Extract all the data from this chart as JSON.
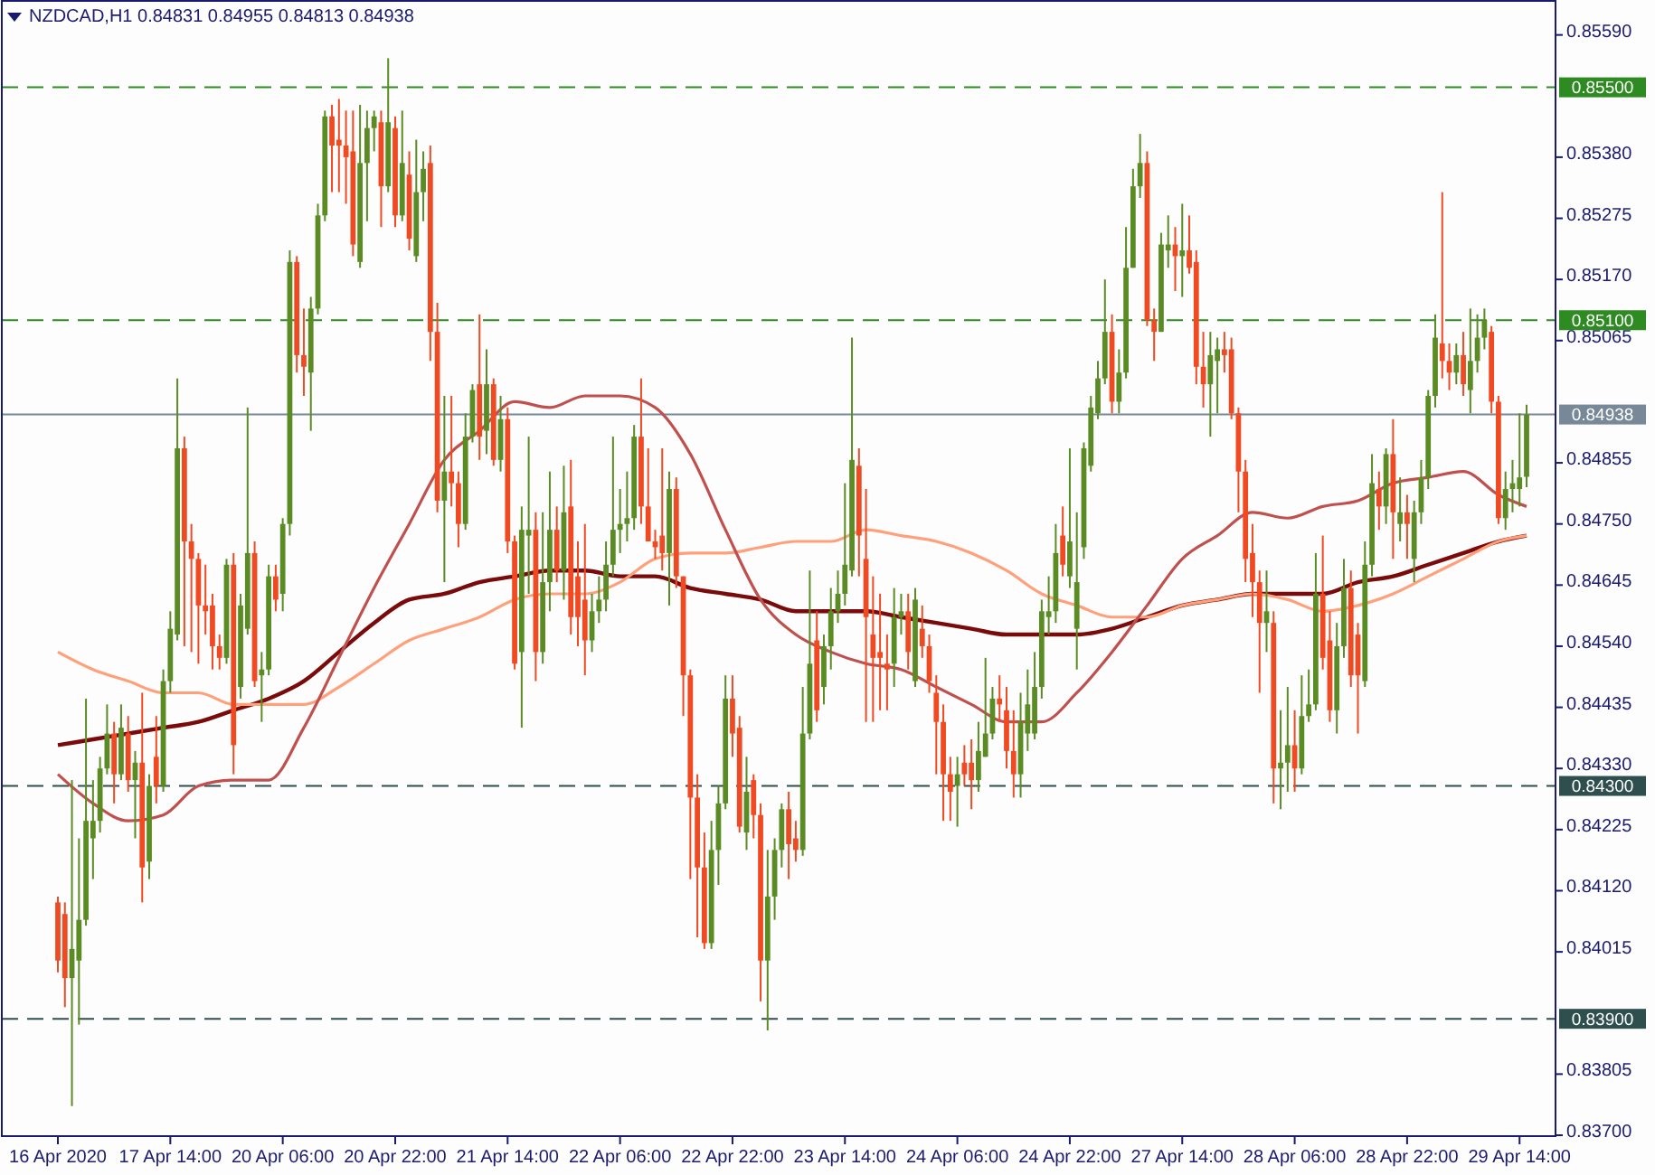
{
  "chart_data": {
    "type": "candlestick",
    "title": "NZDCAD,H1 0.84831 0.84955 0.84813 0.84938",
    "categories": [
      "16 Apr 2020",
      null,
      null,
      null,
      null,
      null,
      null,
      null,
      null,
      null,
      null,
      null,
      null,
      null,
      null,
      null,
      "17 Apr 14:00",
      null,
      null,
      null,
      null,
      null,
      null,
      null,
      null,
      null,
      null,
      null,
      null,
      null,
      null,
      null,
      "20 Apr 06:00",
      null,
      null,
      null,
      null,
      null,
      null,
      null,
      null,
      null,
      null,
      null,
      null,
      null,
      null,
      null,
      "20 Apr 22:00",
      null,
      null,
      null,
      null,
      null,
      null,
      null,
      null,
      null,
      null,
      null,
      null,
      null,
      null,
      null,
      "21 Apr 14:00",
      null,
      null,
      null,
      null,
      null,
      null,
      null,
      null,
      null,
      null,
      null,
      null,
      null,
      null,
      null,
      "22 Apr 06:00",
      null,
      null,
      null,
      null,
      null,
      null,
      null,
      null,
      null,
      null,
      null,
      null,
      null,
      null,
      null,
      "22 Apr 22:00",
      null,
      null,
      null,
      null,
      null,
      null,
      null,
      null,
      null,
      null,
      null,
      null,
      null,
      null,
      null,
      "23 Apr 14:00",
      null,
      null,
      null,
      null,
      null,
      null,
      null,
      null,
      null,
      null,
      null,
      null,
      null,
      null,
      null,
      "24 Apr 06:00",
      null,
      null,
      null,
      null,
      null,
      null,
      null,
      null,
      null,
      null,
      null,
      null,
      null,
      null,
      null,
      "24 Apr 22:00",
      null,
      null,
      null,
      null,
      null,
      null,
      null,
      null,
      null,
      null,
      null,
      null,
      null,
      null,
      null,
      "27 Apr 14:00",
      null,
      null,
      null,
      null,
      null,
      null,
      null,
      null,
      null,
      null,
      null,
      null,
      null,
      null,
      null,
      "28 Apr 06:00",
      null,
      null,
      null,
      null,
      null,
      null,
      null,
      null,
      null,
      null,
      null,
      null,
      null,
      null,
      null,
      "28 Apr 22:00",
      null,
      null,
      null,
      null,
      null,
      null,
      null,
      null,
      null,
      null,
      null,
      null,
      null,
      null,
      null,
      "29 Apr 14:00",
      null
    ],
    "ohlc": [
      [
        0.841,
        0.8411,
        0.8398,
        0.84
      ],
      [
        0.8408,
        0.841,
        0.8392,
        0.8397
      ],
      [
        0.8397,
        0.8431,
        0.8375,
        0.8402
      ],
      [
        0.84,
        0.8421,
        0.8389,
        0.8407
      ],
      [
        0.8407,
        0.8445,
        0.8406,
        0.8424
      ],
      [
        0.8421,
        0.8431,
        0.8414,
        0.8424
      ],
      [
        0.8424,
        0.8435,
        0.8422,
        0.8433
      ],
      [
        0.8433,
        0.8444,
        0.8432,
        0.8439
      ],
      [
        0.8439,
        0.8441,
        0.8427,
        0.8432
      ],
      [
        0.8432,
        0.8444,
        0.8431,
        0.844
      ],
      [
        0.8439,
        0.8442,
        0.8429,
        0.8431
      ],
      [
        0.8431,
        0.8436,
        0.8421,
        0.8434
      ],
      [
        0.8434,
        0.8446,
        0.841,
        0.8416
      ],
      [
        0.8417,
        0.8432,
        0.8414,
        0.843
      ],
      [
        0.8435,
        0.8442,
        0.8427,
        0.843
      ],
      [
        0.843,
        0.845,
        0.8429,
        0.8448
      ],
      [
        0.8448,
        0.846,
        0.8446,
        0.8457
      ],
      [
        0.8456,
        0.85,
        0.8455,
        0.8488
      ],
      [
        0.8488,
        0.849,
        0.8454,
        0.8472
      ],
      [
        0.8472,
        0.8475,
        0.8453,
        0.8469
      ],
      [
        0.8469,
        0.847,
        0.8451,
        0.8461
      ],
      [
        0.8461,
        0.8468,
        0.8456,
        0.846
      ],
      [
        0.8461,
        0.8463,
        0.845,
        0.8454
      ],
      [
        0.8454,
        0.8456,
        0.845,
        0.8452
      ],
      [
        0.8452,
        0.8469,
        0.8451,
        0.8468
      ],
      [
        0.8468,
        0.847,
        0.8432,
        0.8437
      ],
      [
        0.8447,
        0.8463,
        0.8445,
        0.8461
      ],
      [
        0.8457,
        0.8495,
        0.8456,
        0.847
      ],
      [
        0.847,
        0.8472,
        0.8447,
        0.8448
      ],
      [
        0.8449,
        0.8453,
        0.8441,
        0.845
      ],
      [
        0.845,
        0.8468,
        0.8449,
        0.8466
      ],
      [
        0.8466,
        0.8468,
        0.846,
        0.8462
      ],
      [
        0.8463,
        0.8476,
        0.846,
        0.8475
      ],
      [
        0.8475,
        0.8522,
        0.8473,
        0.852
      ],
      [
        0.852,
        0.8521,
        0.8501,
        0.8504
      ],
      [
        0.8504,
        0.8512,
        0.8497,
        0.8502
      ],
      [
        0.8501,
        0.8514,
        0.8491,
        0.8512
      ],
      [
        0.8512,
        0.853,
        0.8511,
        0.8528
      ],
      [
        0.8528,
        0.8546,
        0.8527,
        0.8545
      ],
      [
        0.8545,
        0.8547,
        0.8532,
        0.854
      ],
      [
        0.8541,
        0.8548,
        0.8532,
        0.854
      ],
      [
        0.854,
        0.8546,
        0.853,
        0.8538
      ],
      [
        0.8539,
        0.8546,
        0.8521,
        0.8523
      ],
      [
        0.852,
        0.8547,
        0.8519,
        0.8537
      ],
      [
        0.8537,
        0.8546,
        0.8527,
        0.8543
      ],
      [
        0.8543,
        0.8546,
        0.8539,
        0.8545
      ],
      [
        0.8544,
        0.8546,
        0.8526,
        0.8533
      ],
      [
        0.8533,
        0.8555,
        0.8532,
        0.8544
      ],
      [
        0.8543,
        0.8545,
        0.8526,
        0.8528
      ],
      [
        0.8528,
        0.8546,
        0.8527,
        0.8537
      ],
      [
        0.8535,
        0.8539,
        0.8522,
        0.8524
      ],
      [
        0.8521,
        0.8541,
        0.852,
        0.8532
      ],
      [
        0.8532,
        0.8539,
        0.8527,
        0.8536
      ],
      [
        0.8537,
        0.854,
        0.8503,
        0.8508
      ],
      [
        0.8508,
        0.8513,
        0.8477,
        0.8479
      ],
      [
        0.8479,
        0.8497,
        0.8465,
        0.8484
      ],
      [
        0.8484,
        0.8497,
        0.8478,
        0.8482
      ],
      [
        0.8482,
        0.8484,
        0.8471,
        0.8475
      ],
      [
        0.8475,
        0.8494,
        0.8474,
        0.849
      ],
      [
        0.849,
        0.8499,
        0.8489,
        0.8498
      ],
      [
        0.8499,
        0.8511,
        0.8486,
        0.849
      ],
      [
        0.8491,
        0.8505,
        0.8487,
        0.8499
      ],
      [
        0.8499,
        0.85,
        0.8485,
        0.8486
      ],
      [
        0.8486,
        0.8497,
        0.8484,
        0.8493
      ],
      [
        0.8493,
        0.8495,
        0.847,
        0.8472
      ],
      [
        0.8472,
        0.8473,
        0.845,
        0.8451
      ],
      [
        0.8453,
        0.8478,
        0.844,
        0.8474
      ],
      [
        0.8473,
        0.849,
        0.8463,
        0.8474
      ],
      [
        0.8474,
        0.8477,
        0.8448,
        0.8453
      ],
      [
        0.8453,
        0.8477,
        0.8451,
        0.8465
      ],
      [
        0.8465,
        0.8484,
        0.846,
        0.8474
      ],
      [
        0.8474,
        0.8478,
        0.8465,
        0.8467
      ],
      [
        0.8467,
        0.8485,
        0.8462,
        0.8477
      ],
      [
        0.8478,
        0.8486,
        0.8456,
        0.8459
      ],
      [
        0.8466,
        0.8472,
        0.8454,
        0.8459
      ],
      [
        0.8462,
        0.8475,
        0.8449,
        0.8455
      ],
      [
        0.8455,
        0.8463,
        0.8453,
        0.846
      ],
      [
        0.846,
        0.8466,
        0.8458,
        0.8462
      ],
      [
        0.8462,
        0.8472,
        0.846,
        0.8468
      ],
      [
        0.8468,
        0.849,
        0.8466,
        0.8474
      ],
      [
        0.8474,
        0.8481,
        0.847,
        0.8475
      ],
      [
        0.8475,
        0.8484,
        0.8472,
        0.8476
      ],
      [
        0.8476,
        0.8492,
        0.8474,
        0.849
      ],
      [
        0.849,
        0.85,
        0.8475,
        0.8478
      ],
      [
        0.8478,
        0.8488,
        0.8472,
        0.8472
      ],
      [
        0.8472,
        0.8474,
        0.8469,
        0.8471
      ],
      [
        0.8473,
        0.8488,
        0.8467,
        0.847
      ],
      [
        0.847,
        0.8484,
        0.8461,
        0.8481
      ],
      [
        0.8481,
        0.8483,
        0.8464,
        0.8466
      ],
      [
        0.8466,
        0.8466,
        0.8442,
        0.8449
      ],
      [
        0.8449,
        0.845,
        0.8414,
        0.8428
      ],
      [
        0.8428,
        0.8432,
        0.8404,
        0.8416
      ],
      [
        0.8416,
        0.8422,
        0.8402,
        0.8403
      ],
      [
        0.8403,
        0.8424,
        0.8402,
        0.8419
      ],
      [
        0.8419,
        0.843,
        0.8413,
        0.8427
      ],
      [
        0.8427,
        0.8449,
        0.8426,
        0.8445
      ],
      [
        0.8445,
        0.8449,
        0.8435,
        0.8439
      ],
      [
        0.844,
        0.8442,
        0.8422,
        0.8423
      ],
      [
        0.8422,
        0.8435,
        0.8419,
        0.8429
      ],
      [
        0.8431,
        0.8432,
        0.8421,
        0.8425
      ],
      [
        0.8425,
        0.8427,
        0.8393,
        0.84
      ],
      [
        0.84,
        0.8419,
        0.8388,
        0.8411
      ],
      [
        0.8411,
        0.8421,
        0.8407,
        0.8419
      ],
      [
        0.8419,
        0.8427,
        0.8416,
        0.8426
      ],
      [
        0.8426,
        0.8429,
        0.8414,
        0.842
      ],
      [
        0.8421,
        0.8424,
        0.8417,
        0.8419
      ],
      [
        0.8419,
        0.8447,
        0.8418,
        0.8439
      ],
      [
        0.8439,
        0.8467,
        0.8438,
        0.8451
      ],
      [
        0.8455,
        0.846,
        0.8441,
        0.8443
      ],
      [
        0.8447,
        0.8456,
        0.8444,
        0.8454
      ],
      [
        0.8454,
        0.8464,
        0.845,
        0.846
      ],
      [
        0.846,
        0.8467,
        0.8458,
        0.8463
      ],
      [
        0.8463,
        0.8482,
        0.8461,
        0.8468
      ],
      [
        0.8467,
        0.8507,
        0.8466,
        0.8486
      ],
      [
        0.8485,
        0.8488,
        0.8466,
        0.8473
      ],
      [
        0.8469,
        0.8481,
        0.8441,
        0.8459
      ],
      [
        0.8456,
        0.8466,
        0.8441,
        0.8452
      ],
      [
        0.8453,
        0.8463,
        0.8443,
        0.8452
      ],
      [
        0.8451,
        0.8456,
        0.8443,
        0.845
      ],
      [
        0.8451,
        0.8464,
        0.8447,
        0.8459
      ],
      [
        0.8459,
        0.8463,
        0.8456,
        0.846
      ],
      [
        0.846,
        0.8463,
        0.845,
        0.8453
      ],
      [
        0.8448,
        0.8464,
        0.8447,
        0.8462
      ],
      [
        0.8457,
        0.8461,
        0.8452,
        0.8454
      ],
      [
        0.8454,
        0.8456,
        0.8446,
        0.8448
      ],
      [
        0.8446,
        0.8449,
        0.8432,
        0.8441
      ],
      [
        0.8441,
        0.8444,
        0.8424,
        0.8432
      ],
      [
        0.8432,
        0.8435,
        0.8424,
        0.8429
      ],
      [
        0.843,
        0.8435,
        0.8423,
        0.8432
      ],
      [
        0.8434,
        0.8437,
        0.843,
        0.8432
      ],
      [
        0.8434,
        0.8438,
        0.8426,
        0.8431
      ],
      [
        0.8431,
        0.8441,
        0.8429,
        0.8436
      ],
      [
        0.8435,
        0.8452,
        0.8435,
        0.8439
      ],
      [
        0.8439,
        0.8447,
        0.8438,
        0.8445
      ],
      [
        0.8445,
        0.8449,
        0.8441,
        0.8444
      ],
      [
        0.8443,
        0.8447,
        0.8433,
        0.8436
      ],
      [
        0.8436,
        0.8443,
        0.8428,
        0.8432
      ],
      [
        0.8432,
        0.8446,
        0.8428,
        0.8441
      ],
      [
        0.8439,
        0.845,
        0.8436,
        0.8444
      ],
      [
        0.8439,
        0.8453,
        0.8438,
        0.8447
      ],
      [
        0.8447,
        0.8462,
        0.8445,
        0.846
      ],
      [
        0.8459,
        0.8466,
        0.8456,
        0.846
      ],
      [
        0.846,
        0.8475,
        0.8458,
        0.847
      ],
      [
        0.8473,
        0.8478,
        0.8466,
        0.8468
      ],
      [
        0.8466,
        0.8488,
        0.8464,
        0.8472
      ],
      [
        0.8457,
        0.8477,
        0.845,
        0.8465
      ],
      [
        0.8471,
        0.8489,
        0.8469,
        0.8488
      ],
      [
        0.8485,
        0.8497,
        0.8484,
        0.8495
      ],
      [
        0.8494,
        0.8503,
        0.8493,
        0.85
      ],
      [
        0.85,
        0.8517,
        0.8499,
        0.8508
      ],
      [
        0.8508,
        0.8511,
        0.8494,
        0.8496
      ],
      [
        0.8496,
        0.8505,
        0.8494,
        0.8501
      ],
      [
        0.8501,
        0.8526,
        0.85,
        0.8519
      ],
      [
        0.8519,
        0.8536,
        0.8519,
        0.8533
      ],
      [
        0.8533,
        0.8542,
        0.8531,
        0.8537
      ],
      [
        0.8537,
        0.8539,
        0.8509,
        0.851
      ],
      [
        0.851,
        0.8512,
        0.8503,
        0.8508
      ],
      [
        0.8508,
        0.8525,
        0.8508,
        0.8523
      ],
      [
        0.8522,
        0.8528,
        0.8519,
        0.8523
      ],
      [
        0.8523,
        0.8526,
        0.8515,
        0.8521
      ],
      [
        0.8521,
        0.853,
        0.8514,
        0.8522
      ],
      [
        0.8522,
        0.8528,
        0.8518,
        0.8519
      ],
      [
        0.852,
        0.8522,
        0.8499,
        0.8502
      ],
      [
        0.8502,
        0.8508,
        0.8495,
        0.8499
      ],
      [
        0.8499,
        0.8508,
        0.849,
        0.8504
      ],
      [
        0.8503,
        0.8507,
        0.8494,
        0.8505
      ],
      [
        0.8505,
        0.8508,
        0.8501,
        0.8504
      ],
      [
        0.8505,
        0.8507,
        0.8493,
        0.8494
      ],
      [
        0.8494,
        0.8495,
        0.8477,
        0.8484
      ],
      [
        0.8484,
        0.8486,
        0.8465,
        0.8469
      ],
      [
        0.847,
        0.8475,
        0.8459,
        0.8465
      ],
      [
        0.8465,
        0.8467,
        0.8446,
        0.8458
      ],
      [
        0.8458,
        0.8467,
        0.8453,
        0.846
      ],
      [
        0.8458,
        0.846,
        0.8427,
        0.8433
      ],
      [
        0.8433,
        0.8443,
        0.8426,
        0.8434
      ],
      [
        0.8434,
        0.8447,
        0.8429,
        0.8437
      ],
      [
        0.8437,
        0.8443,
        0.8429,
        0.8433
      ],
      [
        0.8433,
        0.8449,
        0.8432,
        0.8442
      ],
      [
        0.8442,
        0.845,
        0.8441,
        0.8444
      ],
      [
        0.8444,
        0.847,
        0.8443,
        0.8463
      ],
      [
        0.8463,
        0.8473,
        0.845,
        0.8452
      ],
      [
        0.8455,
        0.846,
        0.8441,
        0.8443
      ],
      [
        0.8443,
        0.8458,
        0.8439,
        0.8454
      ],
      [
        0.8454,
        0.8469,
        0.8452,
        0.8464
      ],
      [
        0.8464,
        0.8467,
        0.8447,
        0.8449
      ],
      [
        0.8456,
        0.8458,
        0.8439,
        0.8449
      ],
      [
        0.8448,
        0.8472,
        0.8447,
        0.8468
      ],
      [
        0.8468,
        0.8487,
        0.8466,
        0.8482
      ],
      [
        0.8481,
        0.8484,
        0.8474,
        0.8478
      ],
      [
        0.8478,
        0.8488,
        0.8475,
        0.8487
      ],
      [
        0.8487,
        0.8493,
        0.8469,
        0.8477
      ],
      [
        0.8475,
        0.8483,
        0.8472,
        0.8477
      ],
      [
        0.8477,
        0.848,
        0.8469,
        0.8475
      ],
      [
        0.8469,
        0.8479,
        0.8465,
        0.8477
      ],
      [
        0.8477,
        0.8486,
        0.8475,
        0.8483
      ],
      [
        0.8483,
        0.8498,
        0.8481,
        0.8497
      ],
      [
        0.8497,
        0.8511,
        0.8495,
        0.8507
      ],
      [
        0.8506,
        0.8532,
        0.85,
        0.8503
      ],
      [
        0.8503,
        0.8506,
        0.8498,
        0.8501
      ],
      [
        0.8501,
        0.8506,
        0.8499,
        0.8504
      ],
      [
        0.8504,
        0.8508,
        0.8497,
        0.8499
      ],
      [
        0.8498,
        0.8512,
        0.8494,
        0.8503
      ],
      [
        0.8503,
        0.8511,
        0.8501,
        0.8507
      ],
      [
        0.8507,
        0.8512,
        0.8505,
        0.851
      ],
      [
        0.8508,
        0.8509,
        0.8494,
        0.8496
      ],
      [
        0.8496,
        0.8497,
        0.8475,
        0.8476
      ],
      [
        0.8476,
        0.8484,
        0.8474,
        0.8481
      ],
      [
        0.8481,
        0.8486,
        0.8477,
        0.8482
      ],
      [
        0.8481,
        0.8494,
        0.8478,
        0.8483
      ],
      [
        0.84831,
        0.84955,
        0.84813,
        0.84938
      ]
    ],
    "series": [
      {
        "type": "line",
        "color": "#7b0a0a",
        "values": [
          0.8437,
          null,
          null,
          null,
          null,
          0.8438,
          null,
          null,
          null,
          null,
          0.8439,
          null,
          null,
          null,
          null,
          0.844,
          null,
          null,
          null,
          null,
          0.8441,
          null,
          null,
          null,
          null,
          0.8443,
          null,
          null,
          null,
          null,
          0.8445,
          null,
          null,
          null,
          null,
          0.8448,
          null,
          null,
          null,
          null,
          0.8453,
          null,
          null,
          null,
          null,
          0.8458,
          null,
          null,
          null,
          null,
          0.8462,
          null,
          null,
          null,
          null,
          0.8463,
          null,
          null,
          null,
          null,
          0.8465,
          null,
          null,
          null,
          null,
          0.8466,
          null,
          null,
          null,
          null,
          0.8467,
          null,
          null,
          null,
          null,
          0.8467,
          null,
          null,
          null,
          null,
          0.8466,
          null,
          null,
          null,
          null,
          0.8466,
          null,
          null,
          null,
          null,
          0.8464,
          null,
          null,
          null,
          null,
          0.8463,
          null,
          null,
          null,
          null,
          0.8462,
          null,
          null,
          null,
          null,
          0.846,
          null,
          null,
          null,
          null,
          0.846,
          null,
          null,
          null,
          null,
          0.846,
          null,
          null,
          null,
          null,
          0.8459,
          null,
          null,
          null,
          null,
          0.8458,
          null,
          null,
          null,
          null,
          0.8457,
          null,
          null,
          null,
          null,
          0.8456,
          null,
          null,
          null,
          null,
          0.8456,
          null,
          null,
          null,
          null,
          0.8456,
          null,
          null,
          null,
          null,
          0.8457,
          null,
          null,
          null,
          null,
          0.8459,
          null,
          null,
          null,
          null,
          0.8461,
          null,
          null,
          null,
          null,
          0.8462,
          null,
          null,
          null,
          null,
          0.8463,
          null,
          null,
          null,
          null,
          0.8463,
          null,
          null,
          null,
          null,
          0.8463,
          null,
          null,
          null,
          null,
          0.8465,
          null,
          null,
          null,
          null,
          0.8466,
          null,
          null,
          null,
          null,
          0.8468,
          null,
          null,
          null,
          null,
          0.847,
          null,
          null,
          null,
          null,
          0.8472,
          null,
          null,
          null,
          0.8473
        ]
      },
      {
        "type": "line",
        "color": "#ffa07a",
        "values": [
          0.8453,
          null,
          null,
          null,
          null,
          0.845,
          null,
          null,
          null,
          null,
          0.8448,
          null,
          null,
          null,
          null,
          0.8446,
          null,
          null,
          null,
          null,
          0.8446,
          null,
          null,
          null,
          null,
          0.8444,
          null,
          null,
          null,
          null,
          0.8444,
          null,
          null,
          null,
          null,
          0.8444,
          null,
          null,
          null,
          null,
          0.8447,
          null,
          null,
          null,
          null,
          0.8451,
          null,
          null,
          null,
          null,
          0.8455,
          null,
          null,
          null,
          null,
          0.8457,
          null,
          null,
          null,
          null,
          0.8459,
          null,
          null,
          null,
          null,
          0.8462,
          null,
          null,
          null,
          null,
          0.8463,
          null,
          null,
          null,
          null,
          0.8463,
          null,
          null,
          null,
          null,
          0.8465,
          null,
          null,
          null,
          null,
          0.8469,
          null,
          null,
          null,
          null,
          0.847,
          null,
          null,
          null,
          null,
          0.847,
          null,
          null,
          null,
          null,
          0.8471,
          null,
          null,
          null,
          null,
          0.8472,
          null,
          null,
          null,
          null,
          0.8472,
          null,
          null,
          null,
          null,
          0.8474,
          null,
          null,
          null,
          null,
          0.8473,
          null,
          null,
          null,
          null,
          0.8472,
          null,
          null,
          null,
          null,
          0.847,
          null,
          null,
          null,
          null,
          0.8467,
          null,
          null,
          null,
          null,
          0.8463,
          null,
          null,
          null,
          null,
          0.8461,
          null,
          null,
          null,
          null,
          0.8459,
          null,
          null,
          null,
          null,
          0.8459,
          null,
          null,
          null,
          null,
          0.8461,
          null,
          null,
          null,
          null,
          0.8462,
          null,
          null,
          null,
          null,
          0.8463,
          null,
          null,
          null,
          null,
          0.8462,
          null,
          null,
          null,
          null,
          0.846,
          null,
          null,
          null,
          null,
          0.8461,
          null,
          null,
          null,
          null,
          0.8463,
          null,
          null,
          null,
          null,
          0.8466,
          null,
          null,
          null,
          null,
          0.8469,
          null,
          null,
          null,
          null,
          0.8472,
          null,
          null,
          null,
          0.8473
        ]
      },
      {
        "type": "line",
        "color": "#c0504d",
        "values": [
          0.8432,
          null,
          null,
          null,
          null,
          0.8427,
          null,
          null,
          null,
          null,
          0.8424,
          null,
          null,
          null,
          null,
          0.8425,
          null,
          null,
          null,
          null,
          0.843,
          null,
          null,
          null,
          null,
          0.8431,
          null,
          null,
          null,
          null,
          0.8431,
          null,
          null,
          null,
          null,
          0.844,
          null,
          null,
          null,
          null,
          0.8452,
          null,
          null,
          null,
          null,
          0.8464,
          null,
          null,
          null,
          null,
          0.8475,
          null,
          null,
          null,
          null,
          0.8486,
          null,
          null,
          null,
          null,
          0.8491,
          null,
          null,
          null,
          null,
          0.8496,
          null,
          null,
          null,
          null,
          0.8495,
          null,
          null,
          null,
          null,
          0.8497,
          null,
          null,
          null,
          null,
          0.8497,
          null,
          null,
          null,
          null,
          0.8495,
          null,
          null,
          null,
          null,
          0.8487,
          null,
          null,
          null,
          null,
          0.8474,
          null,
          null,
          null,
          null,
          0.8462,
          null,
          null,
          null,
          null,
          0.8456,
          null,
          null,
          null,
          null,
          0.8453,
          null,
          null,
          null,
          null,
          0.8451,
          null,
          null,
          null,
          null,
          0.845,
          null,
          null,
          null,
          null,
          0.8447,
          null,
          null,
          null,
          null,
          0.8444,
          null,
          null,
          null,
          null,
          0.8441,
          null,
          null,
          null,
          null,
          0.8441,
          null,
          null,
          null,
          null,
          0.8446,
          null,
          null,
          null,
          null,
          0.8453,
          null,
          null,
          null,
          null,
          0.8461,
          null,
          null,
          null,
          null,
          0.8469,
          null,
          null,
          null,
          null,
          0.8473,
          null,
          null,
          null,
          null,
          0.8477,
          null,
          null,
          null,
          null,
          0.8476,
          null,
          null,
          null,
          null,
          0.8478,
          null,
          null,
          null,
          null,
          0.8479,
          null,
          null,
          null,
          null,
          0.8482,
          null,
          null,
          null,
          null,
          0.8483,
          null,
          null,
          null,
          null,
          0.8484,
          null,
          null,
          null,
          null,
          0.848,
          null,
          null,
          null,
          0.8478
        ]
      }
    ],
    "ylim": [
      0.837,
      0.8565
    ],
    "yticks": [
      {
        "value": 0.8559,
        "label": "0.85590"
      },
      {
        "value": 0.8538,
        "label": "0.85380"
      },
      0.85275,
      {
        "value": 0.8517,
        "label": "0.85170"
      },
      0.85065,
      0.84855,
      {
        "value": 0.8475,
        "label": "0.84750"
      },
      0.84645,
      {
        "value": 0.8454,
        "label": "0.84540"
      },
      0.84435,
      {
        "value": 0.8433,
        "label": "0.84330"
      },
      0.84225,
      {
        "value": 0.8412,
        "label": "0.84120"
      },
      0.84015,
      0.83805,
      {
        "value": 0.837,
        "label": "0.83700"
      }
    ],
    "ref_lines": [
      {
        "axis": "y",
        "value": 0.855,
        "label": "0.85500",
        "color": "#2e8b22",
        "line_style": "dashed"
      },
      {
        "axis": "y",
        "value": 0.851,
        "label": "0.85100",
        "color": "#2e8b22",
        "line_style": "dashed"
      },
      {
        "axis": "y",
        "value": 0.84938,
        "label": "0.84938",
        "color": "#778899",
        "line_style": "solid"
      },
      {
        "axis": "y",
        "value": 0.843,
        "label": "0.84300",
        "color": "#2f4f4f",
        "line_style": "dashed"
      },
      {
        "axis": "y",
        "value": 0.839,
        "label": "0.83900",
        "color": "#2f4f4f",
        "line_style": "dashed"
      }
    ]
  }
}
